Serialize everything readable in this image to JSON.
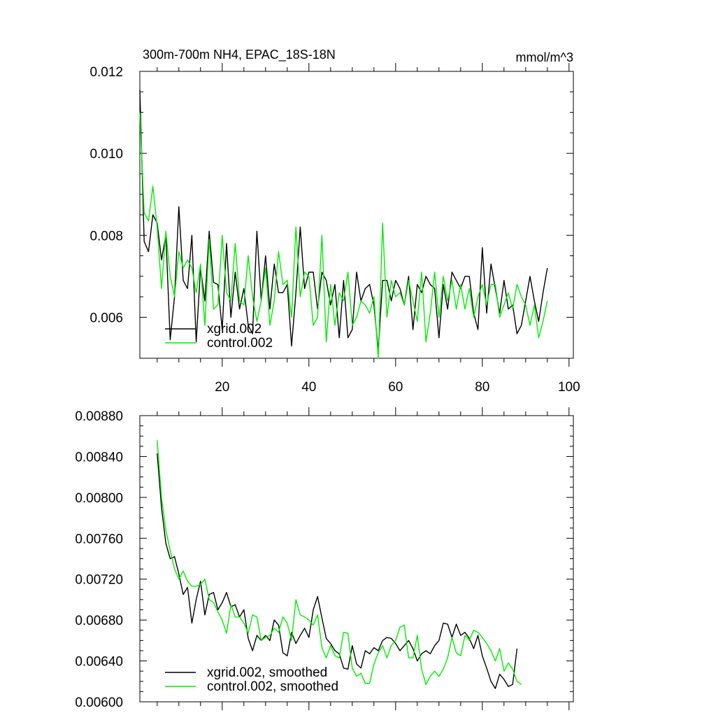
{
  "chart_data": [
    {
      "type": "line",
      "title": "300m-700m NH4, EPAC_18S-18N",
      "units": "mmol/m^3",
      "xlabel": "",
      "ylabel": "",
      "xlim": [
        1,
        101
      ],
      "ylim": [
        0.005,
        0.012
      ],
      "x_ticks": [
        20,
        40,
        60,
        80,
        100
      ],
      "x_tick_labels": [
        "20",
        "40",
        "60",
        "80",
        "100"
      ],
      "y_ticks": [
        0.006,
        0.008,
        0.01,
        0.012
      ],
      "y_tick_labels": [
        "0.006",
        "0.008",
        "0.010",
        "0.012"
      ],
      "x_start": 1,
      "legend_position": "bottom-left",
      "grid": false,
      "series": [
        {
          "name": "xgrid.002",
          "color": "#000000",
          "values": [
            0.01155,
            0.00785,
            0.0076,
            0.0085,
            0.0083,
            0.0074,
            0.008,
            0.00545,
            0.0065,
            0.0087,
            0.0069,
            0.0067,
            0.008,
            0.0054,
            0.0072,
            0.0064,
            0.0081,
            0.00685,
            0.0068,
            0.0057,
            0.0078,
            0.006,
            0.0071,
            0.0062,
            0.0067,
            0.0058,
            0.0056,
            0.0081,
            0.0064,
            0.0075,
            0.0062,
            0.0073,
            0.0066,
            0.0066,
            0.0068,
            0.0053,
            0.0066,
            0.0082,
            0.0067,
            0.0071,
            0.0071,
            0.0062,
            0.0071,
            0.0069,
            0.0063,
            0.0068,
            0.0055,
            0.0069,
            0.0055,
            0.0057,
            0.0071,
            0.0064,
            0.0067,
            0.0068,
            0.0063,
            0.0052,
            0.0069,
            0.0069,
            0.0064,
            0.0069,
            0.0067,
            0.0063,
            0.007,
            0.0057,
            0.0068,
            0.0066,
            0.007,
            0.0068,
            0.0067,
            0.0055,
            0.0068,
            0.0062,
            0.0071,
            0.0069,
            0.0067,
            0.007,
            0.007,
            0.0061,
            0.0057,
            0.0077,
            0.0061,
            0.0073,
            0.0067,
            0.0061,
            0.0069,
            0.0062,
            0.0063,
            0.0056,
            0.0058,
            0.0064,
            0.007,
            0.0064,
            0.0059,
            0.0066,
            0.0072
          ]
        },
        {
          "name": "control.002",
          "color": "#00ee00",
          "values": [
            0.011,
            0.00855,
            0.00835,
            0.0092,
            0.0082,
            0.0067,
            0.0081,
            0.007,
            0.0065,
            0.0076,
            0.0072,
            0.0074,
            0.0072,
            0.0066,
            0.0073,
            0.0058,
            0.0079,
            0.0062,
            0.0063,
            0.008,
            0.0066,
            0.0064,
            0.0078,
            0.0064,
            0.0063,
            0.0075,
            0.0065,
            0.0059,
            0.0064,
            0.0072,
            0.0058,
            0.0064,
            0.0076,
            0.0068,
            0.0069,
            0.006,
            0.0082,
            0.0065,
            0.0071,
            0.007,
            0.0058,
            0.006,
            0.008,
            0.0054,
            0.0068,
            0.0058,
            0.0066,
            0.0064,
            0.0071,
            0.0058,
            0.006,
            0.0064,
            0.0063,
            0.0061,
            0.0065,
            0.005,
            0.0083,
            0.006,
            0.0069,
            0.0065,
            0.0066,
            0.0063,
            0.0069,
            0.0064,
            0.0059,
            0.0071,
            0.0054,
            0.0061,
            0.0071,
            0.006,
            0.007,
            0.0064,
            0.0069,
            0.0062,
            0.0068,
            0.0062,
            0.0067,
            0.006,
            0.0065,
            0.0068,
            0.0063,
            0.0068,
            0.0068,
            0.006,
            0.0063,
            0.0066,
            0.0062,
            0.0068,
            0.0065,
            0.0063,
            0.0058,
            0.0063,
            0.0055,
            0.0059,
            0.0064
          ]
        }
      ]
    },
    {
      "type": "line",
      "title": "",
      "xlabel": "",
      "ylabel": "",
      "xlim": [
        1,
        101
      ],
      "ylim": [
        0.006,
        0.0088
      ],
      "x_ticks": [
        20,
        40,
        60,
        80,
        100
      ],
      "x_tick_labels": [],
      "y_ticks": [
        0.006,
        0.0064,
        0.0068,
        0.0072,
        0.0076,
        0.008,
        0.0084,
        0.0088
      ],
      "y_tick_labels": [
        "0.00600",
        "0.00640",
        "0.00680",
        "0.00720",
        "0.00760",
        "0.00800",
        "0.00840",
        "0.00880"
      ],
      "x_start": 5,
      "legend_position": "bottom-left",
      "grid": false,
      "series": [
        {
          "name": "xgrid.002, smoothed",
          "color": "#000000",
          "values": [
            0.00843,
            0.0079,
            0.00755,
            0.0074,
            0.00742,
            0.00725,
            0.00705,
            0.00712,
            0.00677,
            0.007,
            0.00718,
            0.00685,
            0.00705,
            0.00707,
            0.0069,
            0.00697,
            0.00707,
            0.00693,
            0.00695,
            0.00683,
            0.0069,
            0.00662,
            0.0065,
            0.00665,
            0.0066,
            0.00665,
            0.0066,
            0.0068,
            0.00675,
            0.00648,
            0.00645,
            0.00668,
            0.00657,
            0.00665,
            0.00672,
            0.00663,
            0.0069,
            0.00703,
            0.00682,
            0.00662,
            0.00657,
            0.0065,
            0.00647,
            0.00633,
            0.00632,
            0.00655,
            0.00637,
            0.00633,
            0.0065,
            0.00647,
            0.00653,
            0.0065,
            0.0066,
            0.00663,
            0.00662,
            0.00657,
            0.0065,
            0.00655,
            0.0066,
            0.00652,
            0.0064,
            0.00647,
            0.0065,
            0.00647,
            0.00655,
            0.0066,
            0.00677,
            0.00676,
            0.00663,
            0.00676,
            0.00665,
            0.00668,
            0.00662,
            0.00652,
            0.00665,
            0.00645,
            0.00633,
            0.0062,
            0.00613,
            0.00627,
            0.00622,
            0.00615,
            0.00617,
            0.00652
          ]
        },
        {
          "name": "control.002, smoothed",
          "color": "#00ee00",
          "values": [
            0.00856,
            0.008,
            0.00768,
            0.00748,
            0.0073,
            0.0072,
            0.00728,
            0.00718,
            0.00713,
            0.00713,
            0.00715,
            0.0072,
            0.007,
            0.00697,
            0.00688,
            0.0068,
            0.00667,
            0.00695,
            0.00683,
            0.00683,
            0.00677,
            0.00667,
            0.00685,
            0.00683,
            0.0066,
            0.00663,
            0.00665,
            0.00672,
            0.00668,
            0.00683,
            0.00677,
            0.0066,
            0.007,
            0.00685,
            0.00683,
            0.0068,
            0.00675,
            0.00685,
            0.00653,
            0.00643,
            0.00655,
            0.00645,
            0.00643,
            0.00668,
            0.00667,
            0.00633,
            0.00625,
            0.00628,
            0.00618,
            0.00618,
            0.00637,
            0.00648,
            0.00655,
            0.00643,
            0.00655,
            0.0066,
            0.00673,
            0.00675,
            0.00643,
            0.00643,
            0.00665,
            0.00632,
            0.00617,
            0.00625,
            0.0063,
            0.00625,
            0.00632,
            0.00643,
            0.00663,
            0.00648,
            0.00645,
            0.00665,
            0.0066,
            0.0067,
            0.00668,
            0.00663,
            0.00657,
            0.0065,
            0.0064,
            0.00652,
            0.0063,
            0.00638,
            0.00632,
            0.0062,
            0.00617
          ]
        }
      ]
    }
  ]
}
